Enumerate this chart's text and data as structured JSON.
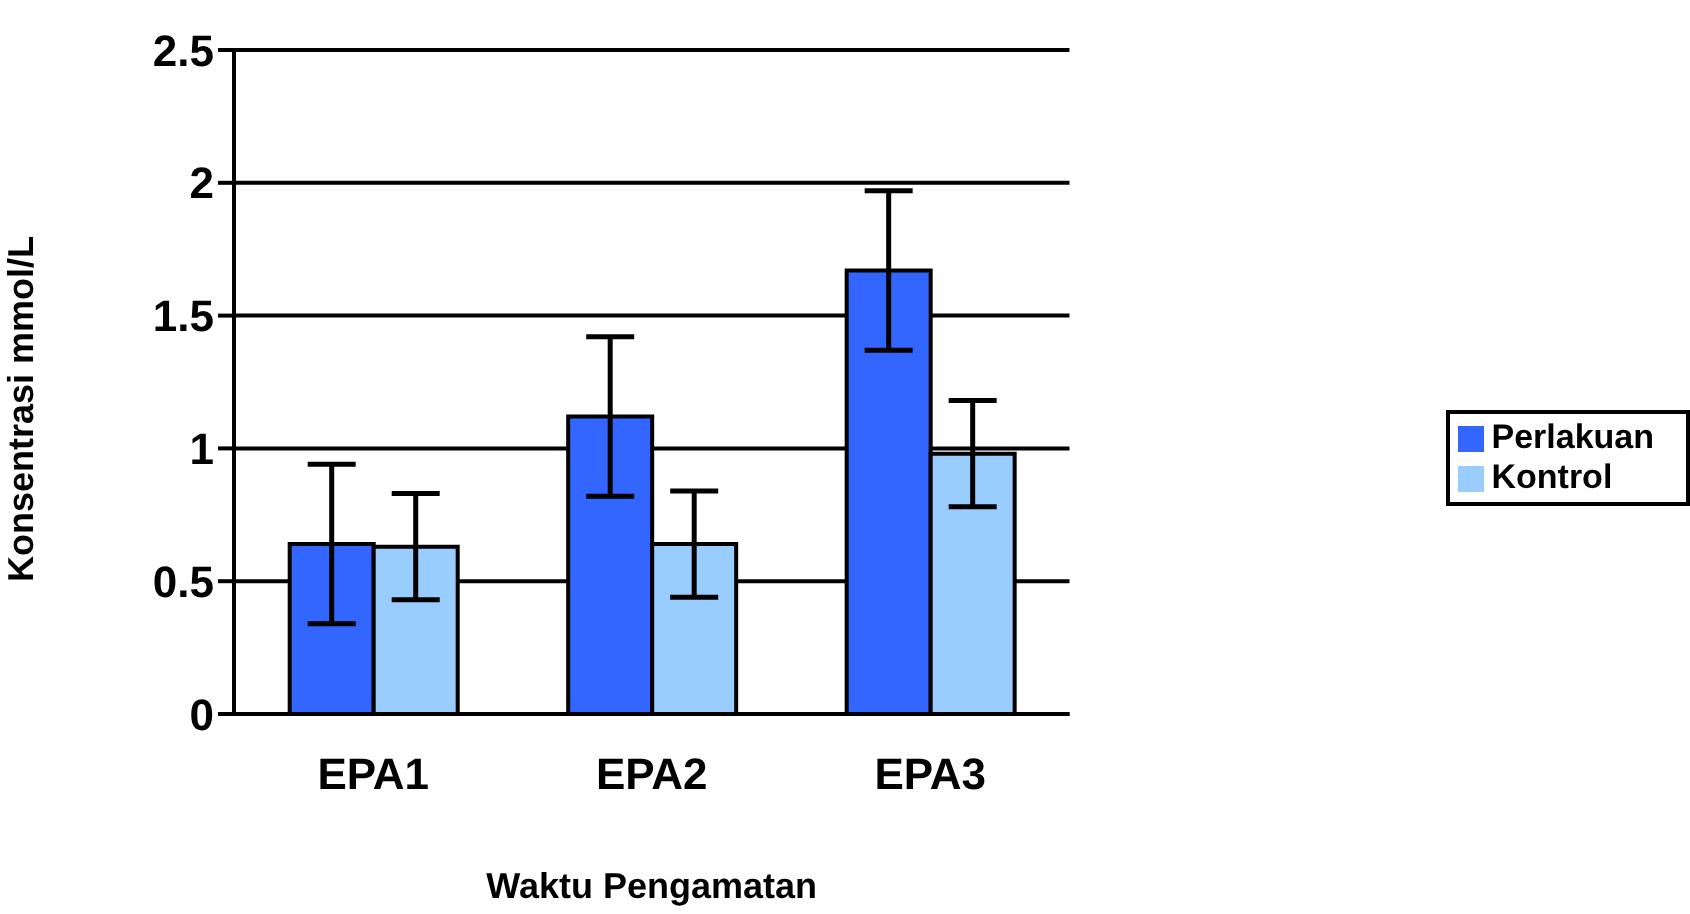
{
  "chart_data": {
    "type": "bar",
    "xlabel": "Waktu Pengamatan",
    "ylabel": "Konsentrasi mmol/L",
    "categories": [
      "EPA1",
      "EPA2",
      "EPA3"
    ],
    "series": [
      {
        "name": "Perlakuan",
        "color": "#3366ff",
        "values": [
          0.64,
          1.12,
          1.67
        ],
        "errors": [
          0.3,
          0.3,
          0.3
        ]
      },
      {
        "name": "Kontrol",
        "color": "#99ccff",
        "values": [
          0.63,
          0.64,
          0.98
        ],
        "errors": [
          0.2,
          0.2,
          0.2
        ]
      }
    ],
    "ylim": [
      0,
      2.5
    ],
    "yticks": [
      0,
      0.5,
      1,
      1.5,
      2,
      2.5
    ],
    "grid": "y",
    "legend": "right"
  }
}
